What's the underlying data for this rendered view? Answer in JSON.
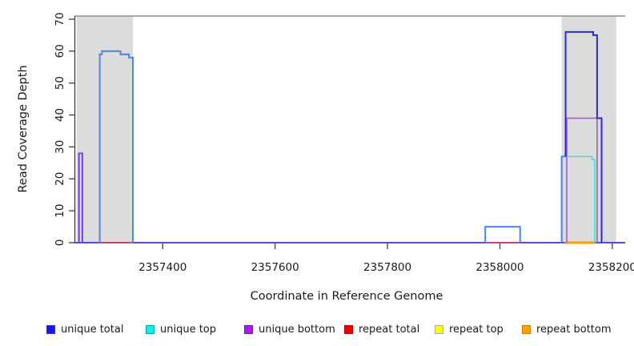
{
  "chart_data": {
    "type": "line",
    "title": "",
    "xlabel": "Coordinate in Reference Genome",
    "ylabel": "Read Coverage Depth",
    "x_ticks": [
      2357400,
      2357600,
      2357800,
      2358000,
      2358200
    ],
    "y_ticks": [
      0,
      10,
      20,
      30,
      40,
      50,
      60,
      70
    ],
    "xlim": [
      2357243,
      2358223
    ],
    "ylim": [
      0,
      71
    ],
    "grid": false,
    "legend_position": "bottom",
    "background_color": "#ffffff",
    "frame_top_color": "#8f8f8f",
    "axis_color": "#3d3d3d",
    "text_color": "#1a1a1a",
    "repeat_region_color": "#dcdcdc",
    "repeat_regions": [
      {
        "x0": 2357247,
        "x1": 2357347
      },
      {
        "x0": 2358110,
        "x1": 2358207
      }
    ],
    "series": [
      {
        "name": "unique total",
        "color": "#0000ee",
        "segments": [
          {
            "x0": 2357251,
            "x1": 2357257,
            "depth": 28
          },
          {
            "x0": 2357288,
            "x1": 2357292,
            "depth": 59
          },
          {
            "x0": 2357292,
            "x1": 2357325,
            "depth": 60
          },
          {
            "x0": 2357325,
            "x1": 2357340,
            "depth": 59
          },
          {
            "x0": 2357340,
            "x1": 2357347,
            "depth": 58
          },
          {
            "x0": 2357974,
            "x1": 2358036,
            "depth": 5
          },
          {
            "x0": 2358110,
            "x1": 2358117,
            "depth": 27
          },
          {
            "x0": 2358117,
            "x1": 2358166,
            "depth": 66
          },
          {
            "x0": 2358166,
            "x1": 2358173,
            "depth": 65
          },
          {
            "x0": 2358173,
            "x1": 2358181,
            "depth": 39
          }
        ]
      },
      {
        "name": "unique top",
        "color": "#00f2f2",
        "segments": [
          {
            "x0": 2357288,
            "x1": 2357347,
            "depth": 60
          },
          {
            "x0": 2357974,
            "x1": 2358036,
            "depth": 5
          },
          {
            "x0": 2358110,
            "x1": 2358164,
            "depth": 27
          },
          {
            "x0": 2358164,
            "x1": 2358169,
            "depth": 26
          }
        ]
      },
      {
        "name": "unique bottom",
        "color": "#a21fe8",
        "segments": [
          {
            "x0": 2357251,
            "x1": 2357257,
            "depth": 28
          },
          {
            "x0": 2358119,
            "x1": 2358173,
            "depth": 39
          }
        ]
      },
      {
        "name": "repeat total",
        "color": "#f50000",
        "segments": [
          {
            "x0": 2357286,
            "x1": 2357347,
            "depth": 0
          },
          {
            "x0": 2357974,
            "x1": 2358036,
            "depth": 0
          }
        ]
      },
      {
        "name": "repeat top",
        "color": "#fcfc00",
        "segments": []
      },
      {
        "name": "repeat bottom",
        "color": "#ffa000",
        "segments": [
          {
            "x0": 2358116,
            "x1": 2358170,
            "depth": 0
          }
        ]
      }
    ],
    "draw_lines": [
      {
        "name": "baseline-blend-line",
        "color": "#544bdb",
        "width": 2,
        "points": [
          [
            2357243,
            0
          ],
          [
            2358223,
            0
          ]
        ]
      },
      {
        "name": "repeat-total-left-line",
        "color": "#e8424e",
        "width": 1.6,
        "points": [
          [
            2357286,
            0
          ],
          [
            2357347,
            0
          ]
        ]
      },
      {
        "name": "repeat-total-mid-line",
        "color": "#e8424e",
        "width": 1.6,
        "points": [
          [
            2357974,
            0
          ],
          [
            2358036,
            0
          ]
        ]
      },
      {
        "name": "repeat-bottom-right-line",
        "color": "#ff9c00",
        "width": 3,
        "points": [
          [
            2358116,
            0
          ],
          [
            2358170,
            0
          ]
        ]
      },
      {
        "name": "unique-bottom-spike-line",
        "color": "#7b3ed8",
        "width": 2,
        "points": [
          [
            2357251,
            0
          ],
          [
            2357251,
            28
          ],
          [
            2357257,
            28
          ],
          [
            2357257,
            0
          ]
        ]
      },
      {
        "name": "unique-total-spike-cap-line",
        "color": "#4a6fe8",
        "width": 1.6,
        "points": [
          [
            2357251,
            28
          ],
          [
            2357257,
            28
          ]
        ]
      },
      {
        "name": "unique-hump-left-line",
        "color": "#4d83ec",
        "width": 2,
        "points": [
          [
            2357288,
            0
          ],
          [
            2357288,
            59
          ],
          [
            2357292,
            59
          ],
          [
            2357292,
            60
          ],
          [
            2357325,
            60
          ],
          [
            2357325,
            59
          ],
          [
            2357340,
            59
          ],
          [
            2357340,
            58
          ],
          [
            2357347,
            58
          ],
          [
            2357347,
            0
          ]
        ]
      },
      {
        "name": "unique-box-mid-line",
        "color": "#4d83ec",
        "width": 2,
        "points": [
          [
            2357974,
            0
          ],
          [
            2357974,
            5
          ],
          [
            2358036,
            5
          ],
          [
            2358036,
            0
          ]
        ]
      },
      {
        "name": "unique-right-shoulder-line",
        "color": "#4d83ec",
        "width": 2,
        "points": [
          [
            2358110,
            0
          ],
          [
            2358110,
            27
          ],
          [
            2358119,
            27
          ]
        ]
      },
      {
        "name": "unique-bottom-right-line",
        "color": "#a35be0",
        "width": 1.6,
        "points": [
          [
            2358119,
            0
          ],
          [
            2358119,
            39
          ],
          [
            2358173,
            39
          ],
          [
            2358173,
            0
          ]
        ]
      },
      {
        "name": "unique-top-right-line",
        "color": "#2fe3ea",
        "width": 1.6,
        "points": [
          [
            2358119,
            27
          ],
          [
            2358164,
            27
          ],
          [
            2358164,
            26
          ],
          [
            2358169,
            26
          ],
          [
            2358169,
            0
          ]
        ]
      },
      {
        "name": "unique-total-right-line",
        "color": "#2b2bd5",
        "width": 2,
        "points": [
          [
            2358117,
            27
          ],
          [
            2358117,
            66
          ],
          [
            2358166,
            66
          ],
          [
            2358166,
            65
          ],
          [
            2358173,
            65
          ],
          [
            2358173,
            39
          ],
          [
            2358181,
            39
          ],
          [
            2358181,
            0
          ]
        ]
      }
    ],
    "legend": {
      "items": [
        {
          "label": "unique total",
          "fill": "#1414f0",
          "border": "#3333d0"
        },
        {
          "label": "unique top",
          "fill": "#00f2f2",
          "border": "#00aaaa"
        },
        {
          "label": "unique bottom",
          "fill": "#a21fe8",
          "border": "#7711bb"
        },
        {
          "label": "repeat total",
          "fill": "#f50000",
          "border": "#b30000"
        },
        {
          "label": "repeat top",
          "fill": "#fcfc00",
          "border": "#ababab"
        },
        {
          "label": "repeat bottom",
          "fill": "#ffa000",
          "border": "#c87800"
        }
      ]
    }
  }
}
